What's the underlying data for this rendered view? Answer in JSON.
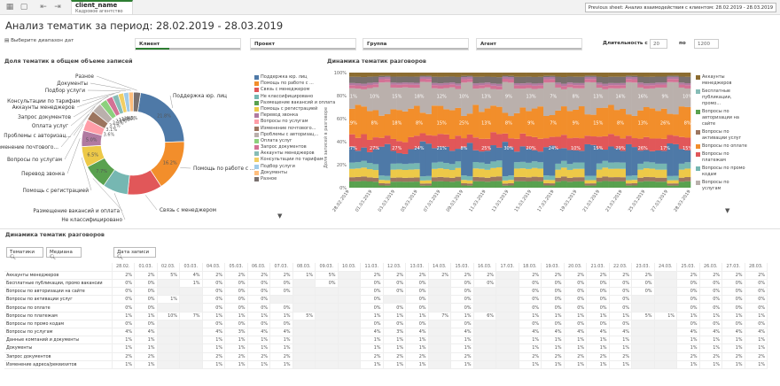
{
  "app": {
    "name": "client_name",
    "subtitle": "Кадровое агентство",
    "prev_sheet": "Previous sheet: Анализ взаимодействия с клиентом: 28.02.2019 - 28.03.2019"
  },
  "page_title": "Анализ тематик за период: 28.02.2019 - 28.03.2019",
  "date_range_label": "Выберите диапазон дат",
  "filters": [
    {
      "label": "Клиент"
    },
    {
      "label": "Проект"
    },
    {
      "label": "Группа"
    },
    {
      "label": "Агент"
    }
  ],
  "duration": {
    "label": "Длительность с",
    "from": "20",
    "to_label": "по",
    "to": "1200"
  },
  "donut": {
    "title": "Доля тематик в общем объеме записей"
  },
  "stacked": {
    "title": "Динамика тематик разговоров",
    "y_axis_label": "Доля записей в разговоре"
  },
  "table": {
    "title": "Динамика тематик разговоров",
    "btn_topics": "Тематики",
    "btn_median": "Медиана",
    "btn_date": "Дата записи",
    "dates": [
      "28.02.",
      "01.03.",
      "02.03.",
      "03.03.",
      "04.03.",
      "05.03.",
      "06.03.",
      "07.03.",
      "08.03.",
      "09.03.",
      "10.03.",
      "11.03.",
      "12.03.",
      "13.03.",
      "14.03.",
      "15.03.",
      "16.03.",
      "17.03.",
      "18.03.",
      "19.03.",
      "20.03.",
      "21.03.",
      "22.03.",
      "23.03.",
      "24.03.",
      "25.03.",
      "26.03.",
      "27.03.",
      "28.03."
    ],
    "rows": [
      {
        "name": "Аккаунты менеджеров",
        "cells": [
          "2%",
          "2%",
          "5%",
          "4%",
          "2%",
          "2%",
          "2%",
          "2%",
          "1%",
          "5%",
          "",
          "2%",
          "2%",
          "2%",
          "2%",
          "2%",
          "2%",
          "",
          "2%",
          "2%",
          "2%",
          "2%",
          "2%",
          "2%",
          "",
          "2%",
          "2%",
          "2%",
          "2%"
        ]
      },
      {
        "name": "Бесплатные публикации, промо вакансии",
        "cells": [
          "0%",
          "0%",
          "",
          "1%",
          "0%",
          "0%",
          "0%",
          "0%",
          "",
          "0%",
          "",
          "0%",
          "0%",
          "0%",
          "",
          "0%",
          "0%",
          "",
          "0%",
          "0%",
          "0%",
          "0%",
          "0%",
          "0%",
          "",
          "0%",
          "0%",
          "0%",
          "0%"
        ]
      },
      {
        "name": "Вопросы по авторизации на сайте",
        "cells": [
          "0%",
          "0%",
          "",
          "",
          "0%",
          "0%",
          "0%",
          "0%",
          "",
          "",
          "",
          "0%",
          "0%",
          "0%",
          "",
          "0%",
          "",
          "",
          "0%",
          "0%",
          "0%",
          "0%",
          "0%",
          "0%",
          "",
          "0%",
          "0%",
          "0%",
          "0%"
        ]
      },
      {
        "name": "Вопросы по активации услуг",
        "cells": [
          "0%",
          "0%",
          "1%",
          "",
          "0%",
          "0%",
          "0%",
          "",
          "",
          "",
          "",
          "0%",
          "",
          "0%",
          "",
          "0%",
          "",
          "",
          "0%",
          "0%",
          "0%",
          "0%",
          "0%",
          "",
          "",
          "0%",
          "0%",
          "0%",
          "0%"
        ]
      },
      {
        "name": "Вопросы по оплате",
        "cells": [
          "0%",
          "0%",
          "",
          "",
          "0%",
          "0%",
          "0%",
          "0%",
          "",
          "",
          "",
          "0%",
          "0%",
          "0%",
          "",
          "0%",
          "",
          "",
          "0%",
          "0%",
          "0%",
          "0%",
          "0%",
          "",
          "",
          "0%",
          "0%",
          "0%",
          "0%"
        ]
      },
      {
        "name": "Вопросы по платежам",
        "cells": [
          "1%",
          "1%",
          "10%",
          "7%",
          "1%",
          "1%",
          "1%",
          "1%",
          "5%",
          "",
          "",
          "1%",
          "1%",
          "1%",
          "7%",
          "1%",
          "6%",
          "",
          "1%",
          "1%",
          "1%",
          "1%",
          "1%",
          "5%",
          "1%",
          "1%",
          "1%",
          "1%",
          "1%"
        ]
      },
      {
        "name": "Вопросы по промо кодам",
        "cells": [
          "0%",
          "0%",
          "",
          "",
          "0%",
          "0%",
          "0%",
          "0%",
          "",
          "",
          "",
          "0%",
          "0%",
          "0%",
          "",
          "0%",
          "",
          "",
          "0%",
          "0%",
          "0%",
          "0%",
          "0%",
          "",
          "",
          "0%",
          "0%",
          "0%",
          "0%"
        ]
      },
      {
        "name": "Вопросы по услугам",
        "cells": [
          "4%",
          "4%",
          "",
          "",
          "4%",
          "3%",
          "4%",
          "4%",
          "",
          "",
          "",
          "4%",
          "3%",
          "4%",
          "",
          "4%",
          "",
          "",
          "4%",
          "4%",
          "4%",
          "4%",
          "4%",
          "",
          "",
          "4%",
          "4%",
          "4%",
          "4%"
        ]
      },
      {
        "name": "Данные компаний и документы",
        "cells": [
          "1%",
          "1%",
          "",
          "",
          "1%",
          "1%",
          "1%",
          "1%",
          "",
          "",
          "",
          "1%",
          "1%",
          "1%",
          "",
          "1%",
          "",
          "",
          "1%",
          "1%",
          "1%",
          "1%",
          "1%",
          "",
          "",
          "1%",
          "1%",
          "1%",
          "1%"
        ]
      },
      {
        "name": "Документы",
        "cells": [
          "1%",
          "1%",
          "",
          "",
          "1%",
          "1%",
          "1%",
          "1%",
          "",
          "",
          "",
          "1%",
          "1%",
          "1%",
          "",
          "1%",
          "",
          "",
          "1%",
          "1%",
          "1%",
          "1%",
          "1%",
          "",
          "",
          "1%",
          "1%",
          "1%",
          "1%"
        ]
      },
      {
        "name": "Запрос документов",
        "cells": [
          "2%",
          "2%",
          "",
          "",
          "2%",
          "2%",
          "2%",
          "2%",
          "",
          "",
          "",
          "2%",
          "2%",
          "2%",
          "",
          "2%",
          "",
          "",
          "2%",
          "2%",
          "2%",
          "2%",
          "2%",
          "",
          "",
          "2%",
          "2%",
          "2%",
          "2%"
        ]
      },
      {
        "name": "Изменение адреса/реквизитов",
        "cells": [
          "1%",
          "1%",
          "",
          "",
          "1%",
          "1%",
          "1%",
          "1%",
          "",
          "",
          "",
          "1%",
          "1%",
          "1%",
          "",
          "1%",
          "",
          "",
          "1%",
          "1%",
          "1%",
          "1%",
          "1%",
          "",
          "",
          "1%",
          "1%",
          "1%",
          "1%"
        ]
      }
    ]
  },
  "chart_data": [
    {
      "type": "pie",
      "title": "Доля тематик в общем объеме записей",
      "labels": [
        "Поддержка юр. лиц",
        "Помощь по работе с ...",
        "Связь с менеджером",
        "Не классифицировано",
        "Размещение вакансий и оплата",
        "Помощь с регистрацией",
        "Перевод звонка",
        "Вопросы по услугам",
        "Изменение почтового...",
        "Проблемы с авторизац...",
        "Оплата услуг",
        "Запрос документов",
        "Аккаунты менеджеров",
        "Консультации по тарифам",
        "Подбор услуги",
        "Документы",
        "Разное"
      ],
      "values": [
        21.8,
        16.2,
        10.8,
        7.9,
        7.7,
        6.5,
        5.0,
        3.6,
        3.1,
        3.1,
        2.3,
        2.1,
        1.9,
        1.7,
        1.6,
        1.5,
        2.2
      ],
      "value_labels": [
        "21.8%",
        "16.2%",
        "",
        "",
        "7.7%",
        "6.5%",
        "5.0%",
        "3.6%",
        "3.1%",
        "3.1%",
        "2.3%",
        "2.1%",
        "1.9%",
        "1.7%",
        "1.6%",
        "1.5%",
        ""
      ],
      "colors": [
        "#4e79a7",
        "#f28e2b",
        "#e15759",
        "#76b7b2",
        "#59a14f",
        "#edc948",
        "#b07aa1",
        "#ff9da7",
        "#9c755f",
        "#bab0ac",
        "#8cd17d",
        "#d37295",
        "#86bcb6",
        "#f1ce63",
        "#a0cbe8",
        "#ffbe7d",
        "#79706e"
      ]
    },
    {
      "type": "area",
      "title": "Динамика тематик разговоров",
      "ylabel": "Доля записей в разговоре",
      "ylim": [
        0,
        100
      ],
      "yticks": [
        "0%",
        "20%",
        "40%",
        "60%",
        "80%",
        "100%"
      ],
      "x": [
        "28.02.2019",
        "01.03.2019",
        "03.03.2019",
        "05.03.2019",
        "07.03.2019",
        "09.03.2019",
        "11.03.2019",
        "13.03.2019",
        "15.03.2019",
        "17.03.2019",
        "19.03.2019",
        "21.03.2019",
        "23.03.2019",
        "25.03.2019",
        "27.03.2019",
        "28.03.2019"
      ],
      "legend": [
        "Аккаунты менеджеров",
        "Бесплатные публикации, промо...",
        "Вопросы по авторизации на сайте",
        "Вопросы по активации услуг",
        "Вопросы по оплате",
        "Вопросы по платежам",
        "Вопросы по промо кодам",
        "Вопросы по услугам"
      ],
      "legend_colors": [
        "#8c6d31",
        "#86bcb6",
        "#59a14f",
        "#9c755f",
        "#f28e2b",
        "#e15759",
        "#76b7b2",
        "#bab0ac"
      ],
      "bar_count": 58,
      "bar_labels": [
        [
          "11%",
          "19%",
          "27%"
        ],
        [
          "10%",
          "8%",
          "27%"
        ],
        [
          "15%",
          "18%",
          "27%"
        ],
        [
          "18%",
          "8%",
          "24%"
        ],
        [
          "12%",
          "15%",
          "21%"
        ],
        [
          "10%",
          "25%",
          "8%"
        ],
        [
          "13%",
          "13%",
          "25%"
        ],
        [
          "9%",
          "8%",
          "30%"
        ],
        [
          "13%",
          "9%",
          "20%"
        ],
        [
          "7%",
          "7%",
          "24%"
        ],
        [
          "8%",
          "9%",
          "10%"
        ],
        [
          "13%",
          "15%",
          "15%"
        ],
        [
          "14%",
          "8%",
          "29%"
        ],
        [
          "16%",
          "13%",
          "26%"
        ],
        [
          "9%",
          "26%",
          "17%"
        ],
        [
          "10%",
          "8%",
          "15%"
        ]
      ]
    }
  ]
}
